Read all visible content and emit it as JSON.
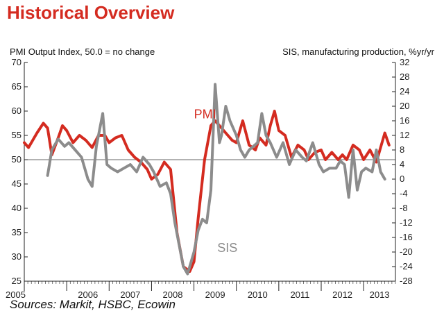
{
  "title": "Historical Overview",
  "source": "Sources: Markit, HSBC, Ecowin",
  "chart_data": {
    "type": "line",
    "left_axis_label": "PMI Output Index, 50.0 = no change",
    "right_axis_label": "SIS, manufacturing production, %yr/yr",
    "left_ylim": [
      25,
      70
    ],
    "right_ylim": [
      -28,
      32
    ],
    "left_ticks": [
      "25",
      "30",
      "35",
      "40",
      "45",
      "50",
      "55",
      "60",
      "65",
      "70"
    ],
    "right_ticks": [
      "-28",
      "-24",
      "-20",
      "-16",
      "-12",
      "-8",
      "-4",
      "0",
      "4",
      "8",
      "12",
      "16",
      "20",
      "24",
      "28",
      "32"
    ],
    "years": [
      "2005",
      "2006",
      "2007",
      "2008",
      "2009",
      "2010",
      "2011",
      "2012",
      "2013"
    ],
    "x_start": 2005.0,
    "x_end": 2013.75,
    "reference_line": 50,
    "series": [
      {
        "name": "PMI",
        "axis": "left",
        "color": "#d42b20",
        "x": [
          2005.0,
          2005.1,
          2005.2,
          2005.3,
          2005.45,
          2005.55,
          2005.65,
          2005.8,
          2005.9,
          2006.0,
          2006.15,
          2006.3,
          2006.45,
          2006.6,
          2006.75,
          2006.9,
          2007.0,
          2007.15,
          2007.3,
          2007.45,
          2007.6,
          2007.75,
          2007.9,
          2008.0,
          2008.15,
          2008.3,
          2008.45,
          2008.6,
          2008.75,
          2008.9,
          2009.0,
          2009.1,
          2009.25,
          2009.4,
          2009.5,
          2009.6,
          2009.75,
          2009.9,
          2010.0,
          2010.15,
          2010.3,
          2010.45,
          2010.55,
          2010.7,
          2010.8,
          2010.9,
          2011.0,
          2011.15,
          2011.3,
          2011.45,
          2011.6,
          2011.7,
          2011.85,
          2012.0,
          2012.1,
          2012.25,
          2012.4,
          2012.5,
          2012.6,
          2012.75,
          2012.9,
          2013.0,
          2013.15,
          2013.3,
          2013.4,
          2013.5,
          2013.6
        ],
        "y": [
          53.5,
          52.5,
          54,
          55.5,
          57.5,
          56.5,
          51,
          54.5,
          57,
          56,
          53.5,
          55,
          54,
          52.5,
          55,
          55,
          53.5,
          54.5,
          55,
          52,
          50.5,
          49.5,
          48,
          46,
          47,
          49.5,
          48,
          35,
          28,
          27,
          29,
          38,
          50,
          57,
          58,
          57,
          55.5,
          54,
          53.5,
          58,
          53,
          52,
          54.5,
          53,
          57,
          60,
          56,
          55,
          50.5,
          53,
          52,
          50,
          51.5,
          52,
          50,
          51.5,
          50,
          51,
          50,
          53,
          52,
          50,
          52,
          49.5,
          52.5,
          55.5,
          53
        ]
      },
      {
        "name": "SIS",
        "axis": "right",
        "color": "#8c8c8c",
        "x": [
          2005.55,
          2005.65,
          2005.8,
          2005.95,
          2006.05,
          2006.2,
          2006.35,
          2006.5,
          2006.6,
          2006.7,
          2006.85,
          2006.95,
          2007.05,
          2007.2,
          2007.35,
          2007.5,
          2007.65,
          2007.8,
          2007.95,
          2008.05,
          2008.2,
          2008.35,
          2008.45,
          2008.55,
          2008.65,
          2008.75,
          2008.85,
          2009.0,
          2009.1,
          2009.2,
          2009.3,
          2009.4,
          2009.5,
          2009.6,
          2009.65,
          2009.75,
          2009.85,
          2010.0,
          2010.1,
          2010.2,
          2010.3,
          2010.4,
          2010.5,
          2010.6,
          2010.7,
          2010.8,
          2010.95,
          2011.1,
          2011.25,
          2011.4,
          2011.55,
          2011.65,
          2011.8,
          2011.95,
          2012.05,
          2012.2,
          2012.35,
          2012.45,
          2012.55,
          2012.65,
          2012.75,
          2012.85,
          2012.95,
          2013.05,
          2013.2,
          2013.3,
          2013.4,
          2013.5
        ],
        "y": [
          1,
          8,
          11,
          9,
          10,
          8,
          6,
          0,
          -2,
          9,
          18,
          4,
          3,
          2,
          3,
          4,
          2,
          6,
          4,
          2,
          -2,
          -1,
          -4,
          -12,
          -18,
          -24,
          -26,
          -20,
          -14,
          -11,
          -12,
          -3,
          26,
          10,
          12,
          20,
          16,
          12,
          8,
          6,
          8,
          9,
          10,
          18,
          12,
          10,
          6,
          10,
          4,
          8,
          6,
          5,
          10,
          4,
          2,
          3,
          3,
          5,
          4,
          -5,
          8,
          -3,
          2,
          3,
          2,
          8,
          2,
          0
        ]
      }
    ],
    "annotations": [
      {
        "text": "PMI",
        "color": "#d42b20"
      },
      {
        "text": "SIS",
        "color": "#8c8c8c"
      }
    ]
  }
}
